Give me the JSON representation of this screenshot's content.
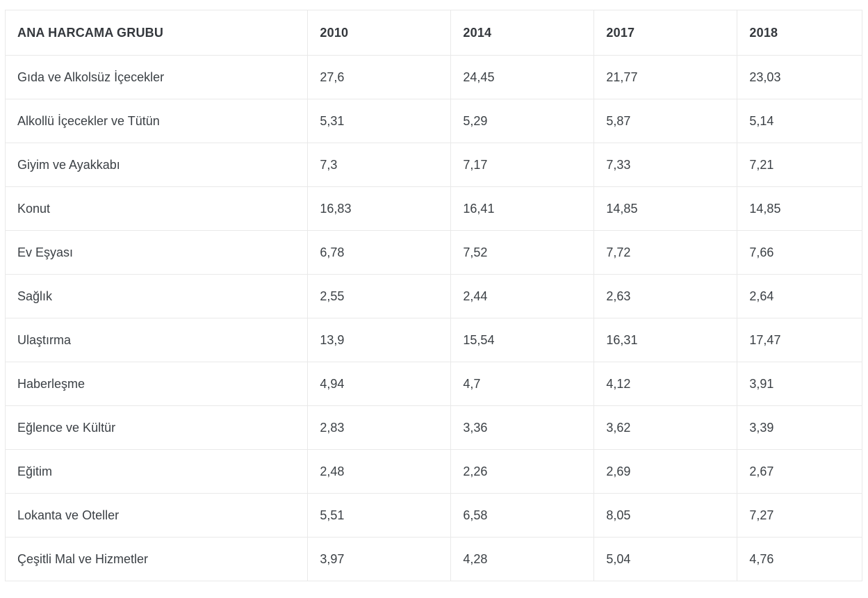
{
  "table": {
    "columns": [
      "ANA HARCAMA GRUBU",
      "2010",
      "2014",
      "2017",
      "2018"
    ],
    "rows": [
      {
        "label": "Gıda ve Alkolsüz İçecekler",
        "values": [
          "27,6",
          "24,45",
          "21,77",
          "23,03"
        ]
      },
      {
        "label": "Alkollü İçecekler ve Tütün",
        "values": [
          "5,31",
          "5,29",
          "5,87",
          "5,14"
        ]
      },
      {
        "label": "Giyim ve Ayakkabı",
        "values": [
          "7,3",
          "7,17",
          "7,33",
          "7,21"
        ]
      },
      {
        "label": "Konut",
        "values": [
          "16,83",
          "16,41",
          "14,85",
          "14,85"
        ]
      },
      {
        "label": "Ev Eşyası",
        "values": [
          "6,78",
          "7,52",
          "7,72",
          "7,66"
        ]
      },
      {
        "label": "Sağlık",
        "values": [
          "2,55",
          "2,44",
          "2,63",
          "2,64"
        ]
      },
      {
        "label": "Ulaştırma",
        "values": [
          "13,9",
          "15,54",
          "16,31",
          "17,47"
        ]
      },
      {
        "label": "Haberleşme",
        "values": [
          "4,94",
          "4,7",
          "4,12",
          "3,91"
        ]
      },
      {
        "label": "Eğlence ve Kültür",
        "values": [
          "2,83",
          "3,36",
          "3,62",
          "3,39"
        ]
      },
      {
        "label": "Eğitim",
        "values": [
          "2,48",
          "2,26",
          "2,69",
          "2,67"
        ]
      },
      {
        "label": "Lokanta ve Oteller",
        "values": [
          "5,51",
          "6,58",
          "8,05",
          "7,27"
        ]
      },
      {
        "label": "Çeşitli Mal ve Hizmetler",
        "values": [
          "3,97",
          "4,28",
          "5,04",
          "4,76"
        ]
      }
    ]
  },
  "colors": {
    "text": "#3b4045",
    "header_text": "#33373c",
    "grid_border": "#e9e9e9",
    "bottom_border": "#d6d6d6",
    "background": "#ffffff"
  },
  "chart_data": {
    "type": "table",
    "title": "ANA HARCAMA GRUBU",
    "categories": [
      "Gıda ve Alkolsüz İçecekler",
      "Alkollü İçecekler ve Tütün",
      "Giyim ve Ayakkabı",
      "Konut",
      "Ev Eşyası",
      "Sağlık",
      "Ulaştırma",
      "Haberleşme",
      "Eğlence ve Kültür",
      "Eğitim",
      "Lokanta ve Oteller",
      "Çeşitli Mal ve Hizmetler"
    ],
    "series": [
      {
        "name": "2010",
        "values": [
          27.6,
          5.31,
          7.3,
          16.83,
          6.78,
          2.55,
          13.9,
          4.94,
          2.83,
          2.48,
          5.51,
          3.97
        ]
      },
      {
        "name": "2014",
        "values": [
          24.45,
          5.29,
          7.17,
          16.41,
          7.52,
          2.44,
          15.54,
          4.7,
          3.36,
          2.26,
          6.58,
          4.28
        ]
      },
      {
        "name": "2017",
        "values": [
          21.77,
          5.87,
          7.33,
          14.85,
          7.72,
          2.63,
          16.31,
          4.12,
          3.62,
          2.69,
          8.05,
          5.04
        ]
      },
      {
        "name": "2018",
        "values": [
          23.03,
          5.14,
          7.21,
          14.85,
          7.66,
          2.64,
          17.47,
          3.91,
          3.39,
          2.67,
          7.27,
          4.76
        ]
      }
    ],
    "decimal_separator": ",",
    "layout": "first column = row labels, remaining columns = yearly values, grid on"
  }
}
